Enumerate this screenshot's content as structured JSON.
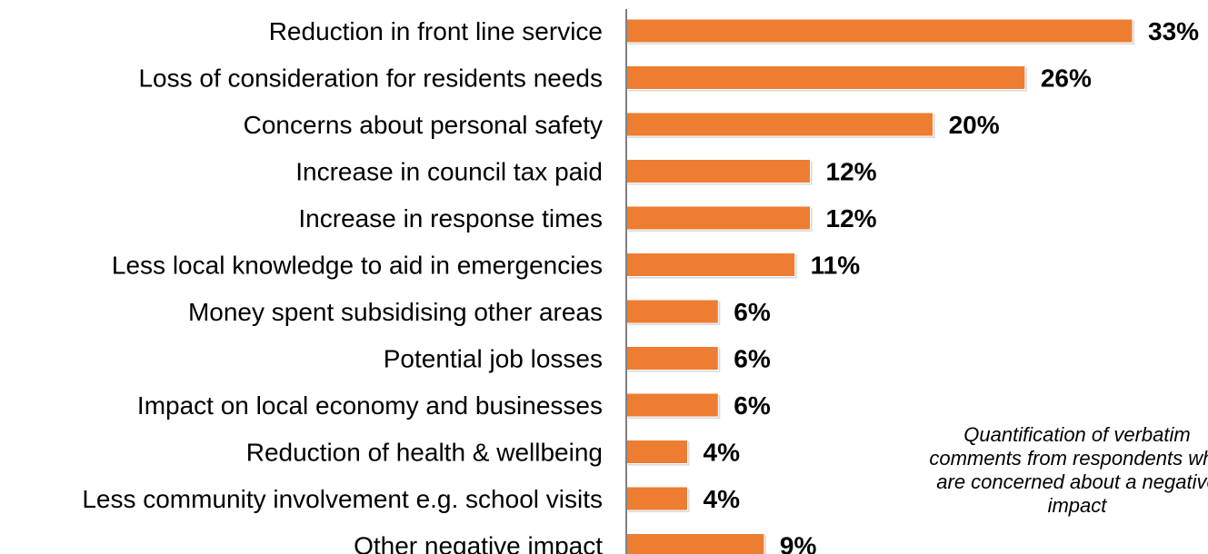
{
  "chart_data": {
    "type": "bar",
    "orientation": "horizontal",
    "categories": [
      "Reduction in front line service",
      "Loss of consideration for residents needs",
      "Concerns about personal safety",
      "Increase in council tax paid",
      "Increase in response times",
      "Less local knowledge to aid in emergencies",
      "Money spent subsidising other areas",
      "Potential job losses",
      "Impact on local economy and businesses",
      "Reduction of health & wellbeing",
      "Less community involvement e.g. school visits",
      "Other negative impact"
    ],
    "values": [
      33,
      26,
      20,
      12,
      12,
      11,
      6,
      6,
      6,
      4,
      4,
      9
    ],
    "value_labels": [
      "33%",
      "26%",
      "20%",
      "12%",
      "12%",
      "11%",
      "6%",
      "6%",
      "6%",
      "4%",
      "4%",
      "9%"
    ],
    "xlim": [
      0,
      33
    ],
    "bar_color": "#ED7D31",
    "grid": false,
    "legend": "none",
    "annotation": "Quantification of verbatim\ncomments from respondents who\nare concerned about a negative\nimpact"
  }
}
